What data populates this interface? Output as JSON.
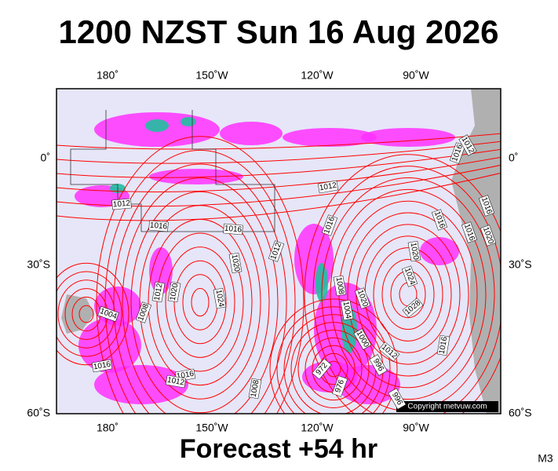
{
  "title": "1200 NZST Sun 16 Aug 2026",
  "map": {
    "longitude_labels": [
      "180˚",
      "150˚W",
      "120˚W",
      "90˚W"
    ],
    "latitude_labels": [
      "0˚",
      "30˚S",
      "60˚S"
    ],
    "isobar_labels": [
      "1012",
      "1012",
      "1016",
      "1016",
      "1016",
      "1012",
      "1020",
      "1020",
      "1012",
      "1024",
      "1008",
      "1004",
      "1008",
      "1004",
      "1020",
      "1020",
      "1024",
      "1028",
      "1000",
      "996",
      "1012",
      "972",
      "976",
      "996",
      "1008",
      "1016",
      "1016",
      "1012",
      "1016",
      "1016",
      "1016",
      "1020",
      "1016",
      "1016",
      "1012"
    ],
    "copyright": "Copyright metvuw.com"
  },
  "footer": {
    "forecast": "Forecast +54 hr",
    "code": "M3"
  }
}
